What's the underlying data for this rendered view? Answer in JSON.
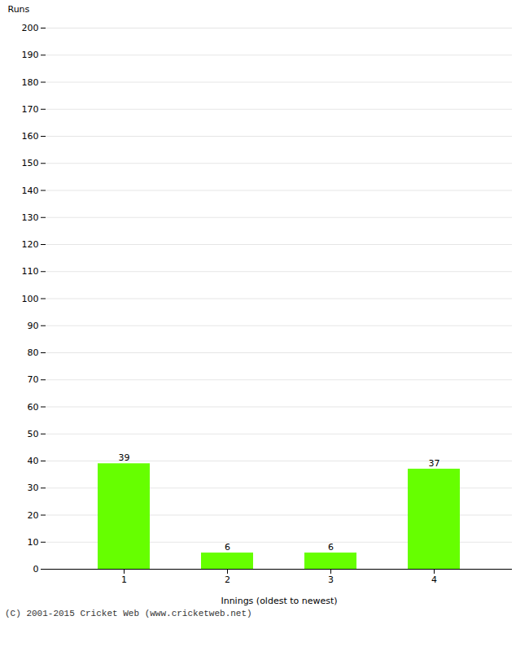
{
  "chart_data": {
    "type": "bar",
    "categories": [
      "1",
      "2",
      "3",
      "4"
    ],
    "values": [
      39,
      6,
      6,
      37
    ],
    "color": "#66ff00",
    "xlabel": "Innings (oldest to newest)",
    "ylabel": "Runs",
    "ylim": [
      0,
      200
    ],
    "yticks": [
      0,
      10,
      20,
      30,
      40,
      50,
      60,
      70,
      80,
      90,
      100,
      110,
      120,
      130,
      140,
      150,
      160,
      170,
      180,
      190,
      200
    ],
    "grid": true,
    "data_labels": true,
    "caption": "(C) 2001-2015 Cricket Web (www.cricketweb.net)"
  }
}
